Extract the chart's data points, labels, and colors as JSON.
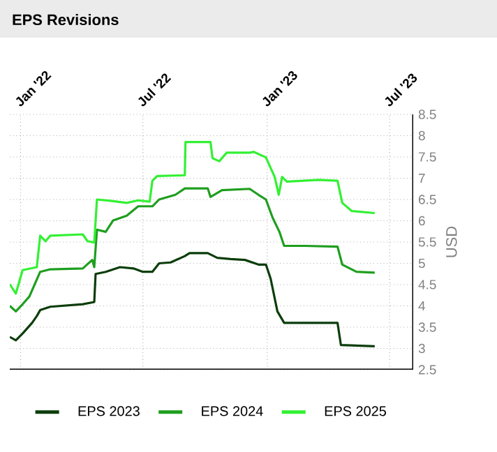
{
  "chart_data": {
    "type": "line",
    "title": "EPS Revisions",
    "ylabel": "USD",
    "xlim": [
      "2021-12-16",
      "2023-08-05"
    ],
    "ylim": [
      2.5,
      8.5
    ],
    "xticks": [
      {
        "value": "2022-01-01",
        "label": "Jan '22"
      },
      {
        "value": "2022-07-01",
        "label": "Jul '22"
      },
      {
        "value": "2023-01-01",
        "label": "Jan '23"
      },
      {
        "value": "2023-07-01",
        "label": "Jul '23"
      }
    ],
    "yticks": [
      2.5,
      3,
      3.5,
      4,
      4.5,
      5,
      5.5,
      6,
      6.5,
      7,
      7.5,
      8,
      8.5
    ],
    "grid": true,
    "legend": "bottom",
    "marker": "none",
    "line_style": "solid",
    "series": [
      {
        "name": "EPS 2023",
        "color": "#0b3d0b",
        "x": [
          "2021-12-16",
          "2021-12-25",
          "2022-01-04",
          "2022-01-18",
          "2022-01-25",
          "2022-01-30",
          "2022-02-14",
          "2022-04-03",
          "2022-04-20",
          "2022-04-22",
          "2022-05-07",
          "2022-05-28",
          "2022-06-17",
          "2022-07-01",
          "2022-07-15",
          "2022-07-25",
          "2022-08-11",
          "2022-09-01",
          "2022-09-08",
          "2022-10-05",
          "2022-10-19",
          "2022-11-08",
          "2022-11-29",
          "2022-12-19",
          "2022-12-30",
          "2023-01-06",
          "2023-01-16",
          "2023-01-26",
          "2023-04-15",
          "2023-04-20",
          "2023-06-09"
        ],
        "values": [
          3.27,
          3.19,
          3.35,
          3.6,
          3.76,
          3.9,
          3.98,
          4.04,
          4.09,
          4.75,
          4.8,
          4.91,
          4.88,
          4.8,
          4.8,
          5.0,
          5.02,
          5.17,
          5.24,
          5.24,
          5.13,
          5.1,
          5.08,
          4.97,
          4.97,
          4.64,
          3.87,
          3.6,
          3.6,
          3.08,
          3.05
        ]
      },
      {
        "name": "EPS 2024",
        "color": "#1e9e1e",
        "x": [
          "2021-12-16",
          "2021-12-25",
          "2022-01-04",
          "2022-01-14",
          "2022-01-30",
          "2022-02-14",
          "2022-04-03",
          "2022-04-17",
          "2022-04-20",
          "2022-04-24",
          "2022-05-07",
          "2022-05-18",
          "2022-06-07",
          "2022-06-24",
          "2022-07-15",
          "2022-07-25",
          "2022-08-18",
          "2022-09-01",
          "2022-10-05",
          "2022-10-09",
          "2022-10-26",
          "2022-12-06",
          "2022-12-19",
          "2022-12-30",
          "2023-01-09",
          "2023-01-19",
          "2023-01-26",
          "2023-02-26",
          "2023-04-15",
          "2023-04-22",
          "2023-05-13",
          "2023-06-09"
        ],
        "values": [
          4.0,
          3.87,
          4.04,
          4.22,
          4.8,
          4.86,
          4.88,
          5.08,
          4.91,
          5.79,
          5.74,
          6.01,
          6.12,
          6.34,
          6.34,
          6.5,
          6.61,
          6.76,
          6.76,
          6.56,
          6.72,
          6.75,
          6.61,
          6.5,
          6.07,
          5.74,
          5.41,
          5.41,
          5.39,
          4.97,
          4.8,
          4.78
        ]
      },
      {
        "name": "EPS 2025",
        "color": "#33f033",
        "x": [
          "2021-12-16",
          "2021-12-25",
          "2022-01-04",
          "2022-01-25",
          "2022-01-30",
          "2022-02-07",
          "2022-02-14",
          "2022-04-03",
          "2022-04-10",
          "2022-04-20",
          "2022-04-24",
          "2022-05-14",
          "2022-06-07",
          "2022-06-24",
          "2022-07-11",
          "2022-07-15",
          "2022-07-22",
          "2022-09-01",
          "2022-09-02",
          "2022-10-09",
          "2022-10-12",
          "2022-10-22",
          "2022-11-02",
          "2022-12-06",
          "2022-12-12",
          "2022-12-30",
          "2023-01-12",
          "2023-01-18",
          "2023-01-23",
          "2023-01-30",
          "2023-03-18",
          "2023-04-15",
          "2023-04-22",
          "2023-05-06",
          "2023-06-09"
        ],
        "values": [
          4.51,
          4.29,
          4.84,
          4.91,
          5.65,
          5.52,
          5.65,
          5.68,
          5.52,
          5.49,
          6.5,
          6.47,
          6.42,
          6.48,
          6.45,
          6.94,
          7.05,
          7.07,
          7.85,
          7.85,
          7.47,
          7.4,
          7.6,
          7.6,
          7.62,
          7.49,
          7.03,
          6.61,
          7.03,
          6.92,
          6.96,
          6.94,
          6.42,
          6.23,
          6.18
        ]
      }
    ]
  }
}
